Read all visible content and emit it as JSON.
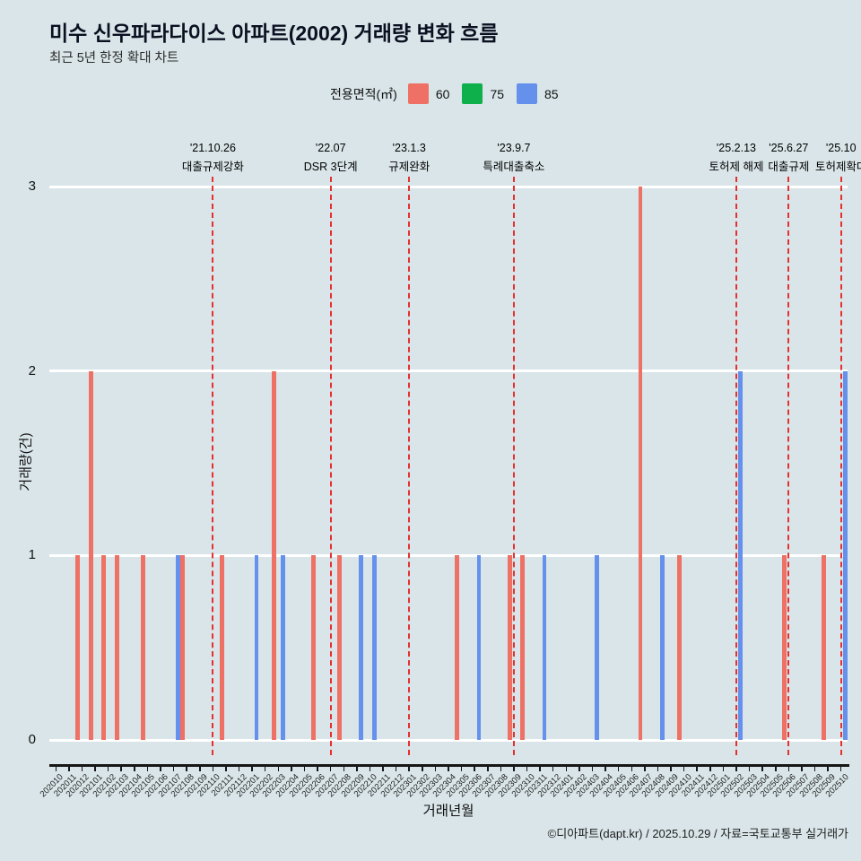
{
  "header": {
    "title": "미수 신우파라다이스 아파트(2002) 거래량 변화 흐름",
    "subtitle": "최근 5년 한정 확대 차트"
  },
  "legend": {
    "label": "전용면적(㎡)",
    "items": [
      {
        "name": "60",
        "color": "#ef7064"
      },
      {
        "name": "75",
        "color": "#0db04b"
      },
      {
        "name": "85",
        "color": "#6590ec"
      }
    ]
  },
  "chart_data": {
    "type": "bar",
    "title": "미수 신우파라다이스 아파트(2002) 거래량 변화 흐름",
    "xlabel": "거래년월",
    "ylabel": "거래량(건)",
    "ylim": [
      0,
      3
    ],
    "yticks": [
      0,
      1,
      2,
      3
    ],
    "grid": "horizontal-white",
    "legend_position": "top",
    "categories": [
      "202010",
      "202011",
      "202012",
      "202101",
      "202102",
      "202103",
      "202104",
      "202105",
      "202106",
      "202107",
      "202108",
      "202109",
      "202110",
      "202111",
      "202112",
      "202201",
      "202202",
      "202203",
      "202204",
      "202205",
      "202206",
      "202207",
      "202208",
      "202209",
      "202210",
      "202211",
      "202212",
      "202301",
      "202302",
      "202303",
      "202304",
      "202305",
      "202306",
      "202307",
      "202308",
      "202309",
      "202310",
      "202311",
      "202312",
      "202401",
      "202402",
      "202403",
      "202404",
      "202405",
      "202406",
      "202407",
      "202408",
      "202409",
      "202410",
      "202411",
      "202412",
      "202501",
      "202502",
      "202503",
      "202504",
      "202505",
      "202506",
      "202507",
      "202508",
      "202509",
      "202510"
    ],
    "series": [
      {
        "name": "60",
        "color": "#ef7064",
        "values": [
          0,
          0,
          1,
          2,
          1,
          1,
          0,
          1,
          0,
          0,
          1,
          0,
          0,
          1,
          0,
          0,
          0,
          2,
          0,
          0,
          1,
          0,
          1,
          0,
          0,
          0,
          0,
          0,
          0,
          0,
          0,
          1,
          0,
          0,
          0,
          1,
          1,
          0,
          0,
          0,
          0,
          0,
          0,
          0,
          0,
          3,
          0,
          0,
          1,
          0,
          0,
          0,
          0,
          0,
          0,
          0,
          1,
          0,
          0,
          1,
          0
        ]
      },
      {
        "name": "75",
        "color": "#0db04b",
        "values": [
          0,
          0,
          0,
          0,
          0,
          0,
          0,
          0,
          0,
          0,
          0,
          0,
          0,
          0,
          0,
          0,
          0,
          0,
          0,
          0,
          0,
          0,
          0,
          0,
          0,
          0,
          0,
          0,
          0,
          0,
          0,
          0,
          0,
          0,
          0,
          0,
          0,
          0,
          0,
          0,
          0,
          0,
          0,
          0,
          0,
          0,
          0,
          0,
          0,
          0,
          0,
          0,
          0,
          0,
          0,
          0,
          0,
          0,
          0,
          0,
          0
        ]
      },
      {
        "name": "85",
        "color": "#6590ec",
        "values": [
          0,
          0,
          0,
          0,
          0,
          0,
          0,
          0,
          0,
          1,
          0,
          0,
          0,
          0,
          0,
          1,
          0,
          1,
          0,
          0,
          0,
          0,
          0,
          1,
          1,
          0,
          0,
          0,
          0,
          0,
          0,
          0,
          1,
          0,
          0,
          0,
          0,
          1,
          0,
          0,
          0,
          1,
          0,
          0,
          0,
          0,
          1,
          0,
          0,
          0,
          0,
          0,
          2,
          0,
          0,
          0,
          0,
          0,
          0,
          0,
          2
        ]
      }
    ],
    "annotations": [
      {
        "category": "202110",
        "date": "'21.10.26",
        "label": "대출규제강화"
      },
      {
        "category": "202207",
        "date": "'22.07",
        "label": "DSR 3단계"
      },
      {
        "category": "202301",
        "date": "'23.1.3",
        "label": "규제완화"
      },
      {
        "category": "202309",
        "date": "'23.9.7",
        "label": "특례대출축소"
      },
      {
        "category": "202502",
        "date": "'25.2.13",
        "label": "토허제 해제"
      },
      {
        "category": "202506",
        "date": "'25.6.27",
        "label": "대출규제"
      },
      {
        "category": "202510",
        "date": "'25.10",
        "label": "토허제확대"
      }
    ],
    "annotation_line_color": "#e53030"
  },
  "footer": {
    "credit": "©디아파트(dapt.kr) / 2025.10.29 / 자료=국토교통부 실거래가"
  }
}
